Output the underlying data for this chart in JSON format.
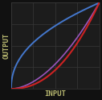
{
  "background_color": "#111111",
  "plot_bg_color": "#1c1c1c",
  "grid_color": "#383838",
  "title": "",
  "xlabel": "INPUT",
  "ylabel": "OUTPUT",
  "xlabel_color": "#b8b870",
  "ylabel_color": "#b8b870",
  "label_fontsize": 6.5,
  "curves": [
    {
      "gamma": 0.45,
      "color": "#4477cc",
      "lw": 1.4
    },
    {
      "gamma": 1.8,
      "color": "#9955bb",
      "lw": 1.2
    },
    {
      "gamma": 2.2,
      "color": "#cc2222",
      "lw": 1.5
    }
  ],
  "xlim": [
    0,
    1
  ],
  "ylim": [
    0,
    1
  ],
  "grid_nx": 4,
  "grid_ny": 4
}
